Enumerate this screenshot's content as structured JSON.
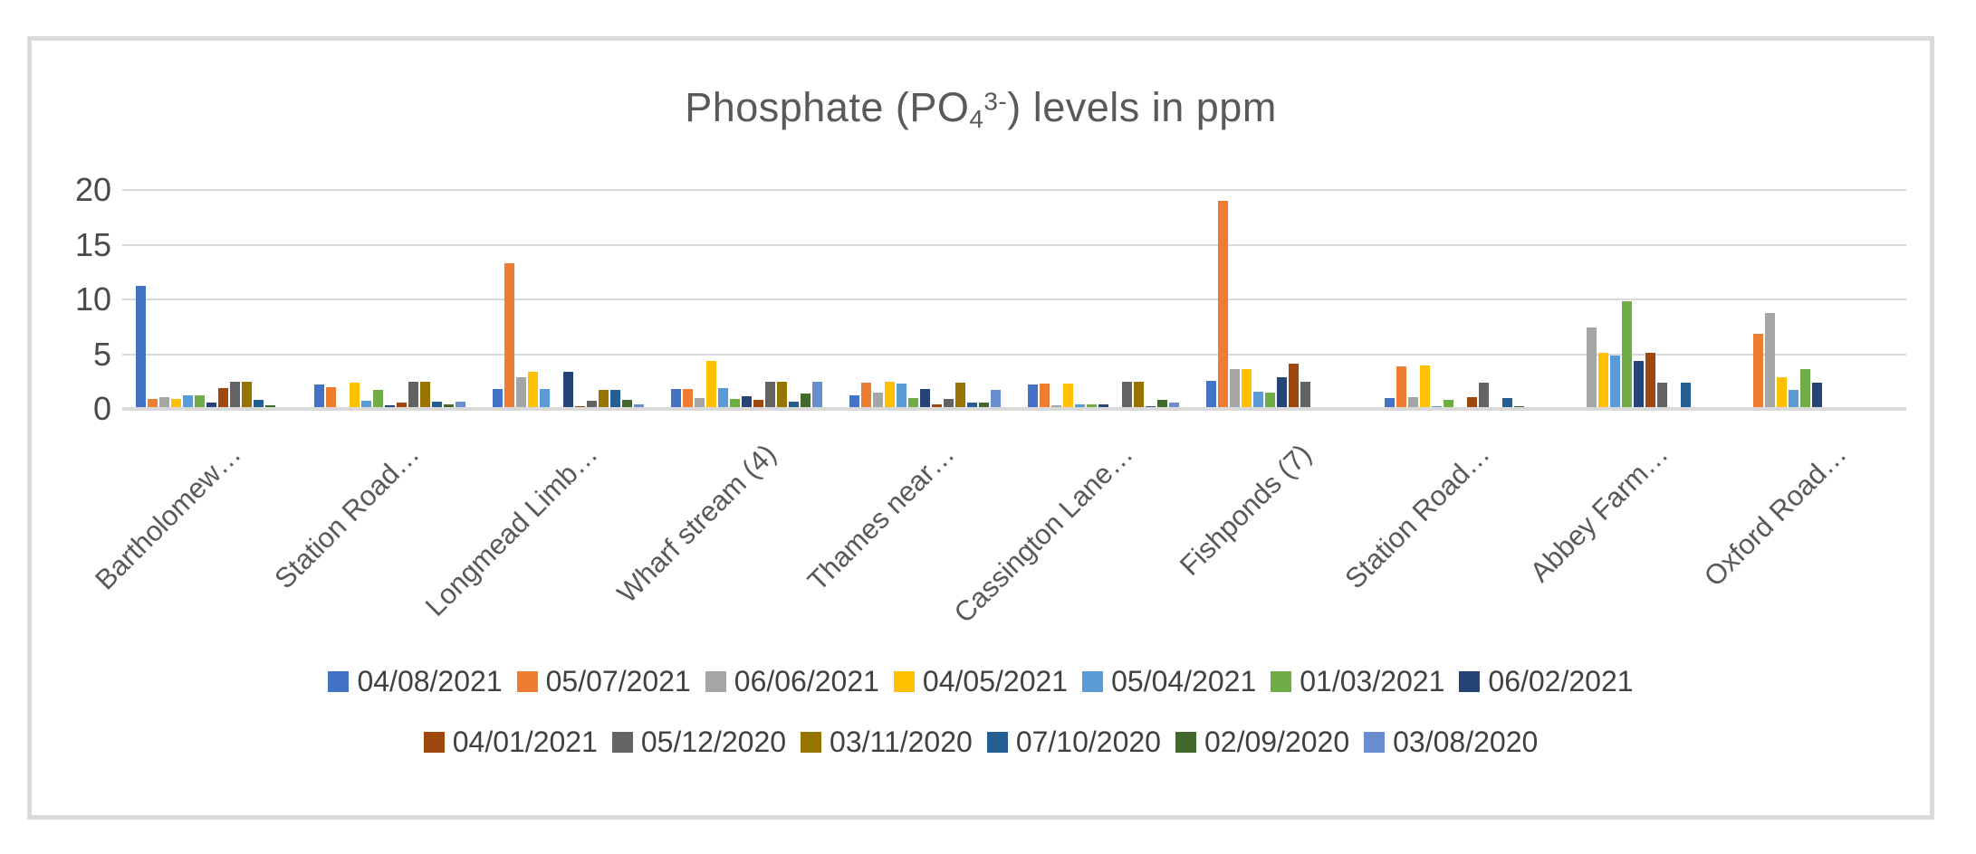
{
  "chart_data": {
    "type": "bar",
    "title": "Phosphate (PO43-) levels in ppm",
    "title_parts": {
      "prefix": "Phosphate (PO",
      "subscript": "4",
      "superscript": "3-",
      "suffix": ") levels in ppm"
    },
    "xlabel": "",
    "ylabel": "",
    "ylim": [
      0,
      20
    ],
    "yticks": [
      0,
      5,
      10,
      15,
      20
    ],
    "grid": "horizontal",
    "legend_position": "bottom",
    "legend_rows": [
      7,
      6
    ],
    "categories": [
      "Bartholomew…",
      "Station Road…",
      "Longmead Limb…",
      "Wharf stream (4)",
      "Thames near…",
      "Cassington Lane…",
      "Fishponds (7)",
      "Station Road…",
      "Abbey Farm…",
      "Oxford Road…"
    ],
    "series": [
      {
        "name": "04/08/2021",
        "color": "#4472C4",
        "values": [
          11.2,
          2.2,
          1.8,
          1.8,
          1.2,
          2.2,
          2.6,
          1.0,
          0,
          0
        ]
      },
      {
        "name": "05/07/2021",
        "color": "#ED7D31",
        "values": [
          0.9,
          2.0,
          13.3,
          1.8,
          2.4,
          2.3,
          19.0,
          3.9,
          0,
          6.9
        ]
      },
      {
        "name": "06/06/2021",
        "color": "#A5A5A5",
        "values": [
          1.1,
          0,
          2.9,
          1.0,
          1.5,
          0.3,
          3.6,
          1.1,
          7.4,
          8.8
        ]
      },
      {
        "name": "04/05/2021",
        "color": "#FFC000",
        "values": [
          0.9,
          2.4,
          3.4,
          4.4,
          2.5,
          2.3,
          3.6,
          4.0,
          5.1,
          2.9
        ]
      },
      {
        "name": "05/04/2021",
        "color": "#5B9BD5",
        "values": [
          1.2,
          0.75,
          1.8,
          1.9,
          2.3,
          0.4,
          1.6,
          0.25,
          4.9,
          1.7
        ]
      },
      {
        "name": "01/03/2021",
        "color": "#70AD47",
        "values": [
          1.2,
          1.7,
          0,
          0.9,
          1.0,
          0.4,
          1.5,
          0.8,
          9.8,
          3.6
        ]
      },
      {
        "name": "06/02/2021",
        "color": "#264478",
        "values": [
          0.55,
          0.35,
          3.4,
          1.15,
          1.8,
          0.4,
          2.9,
          0.15,
          4.4,
          2.4
        ]
      },
      {
        "name": "04/01/2021",
        "color": "#9E480E",
        "values": [
          1.9,
          0.6,
          0.25,
          0.8,
          0.4,
          0,
          4.1,
          1.05,
          5.1,
          0
        ]
      },
      {
        "name": "05/12/2020",
        "color": "#636363",
        "values": [
          2.5,
          2.5,
          0.75,
          2.5,
          0.9,
          2.5,
          2.5,
          2.4,
          2.4,
          0
        ]
      },
      {
        "name": "03/11/2020",
        "color": "#997300",
        "values": [
          2.5,
          2.5,
          1.7,
          2.5,
          2.4,
          2.5,
          0,
          0,
          0,
          0
        ]
      },
      {
        "name": "07/10/2020",
        "color": "#255E91",
        "values": [
          0.8,
          0.65,
          1.7,
          0.65,
          0.55,
          0.25,
          0,
          1.0,
          2.4,
          0
        ]
      },
      {
        "name": "02/09/2020",
        "color": "#43682B",
        "values": [
          0.3,
          0.4,
          0.8,
          1.4,
          0.6,
          0.85,
          0,
          0.25,
          0,
          0
        ]
      },
      {
        "name": "03/08/2020",
        "color": "#698ED0",
        "values": [
          0,
          0.7,
          0.45,
          2.5,
          1.7,
          0.6,
          0,
          0,
          0,
          0
        ]
      }
    ]
  }
}
